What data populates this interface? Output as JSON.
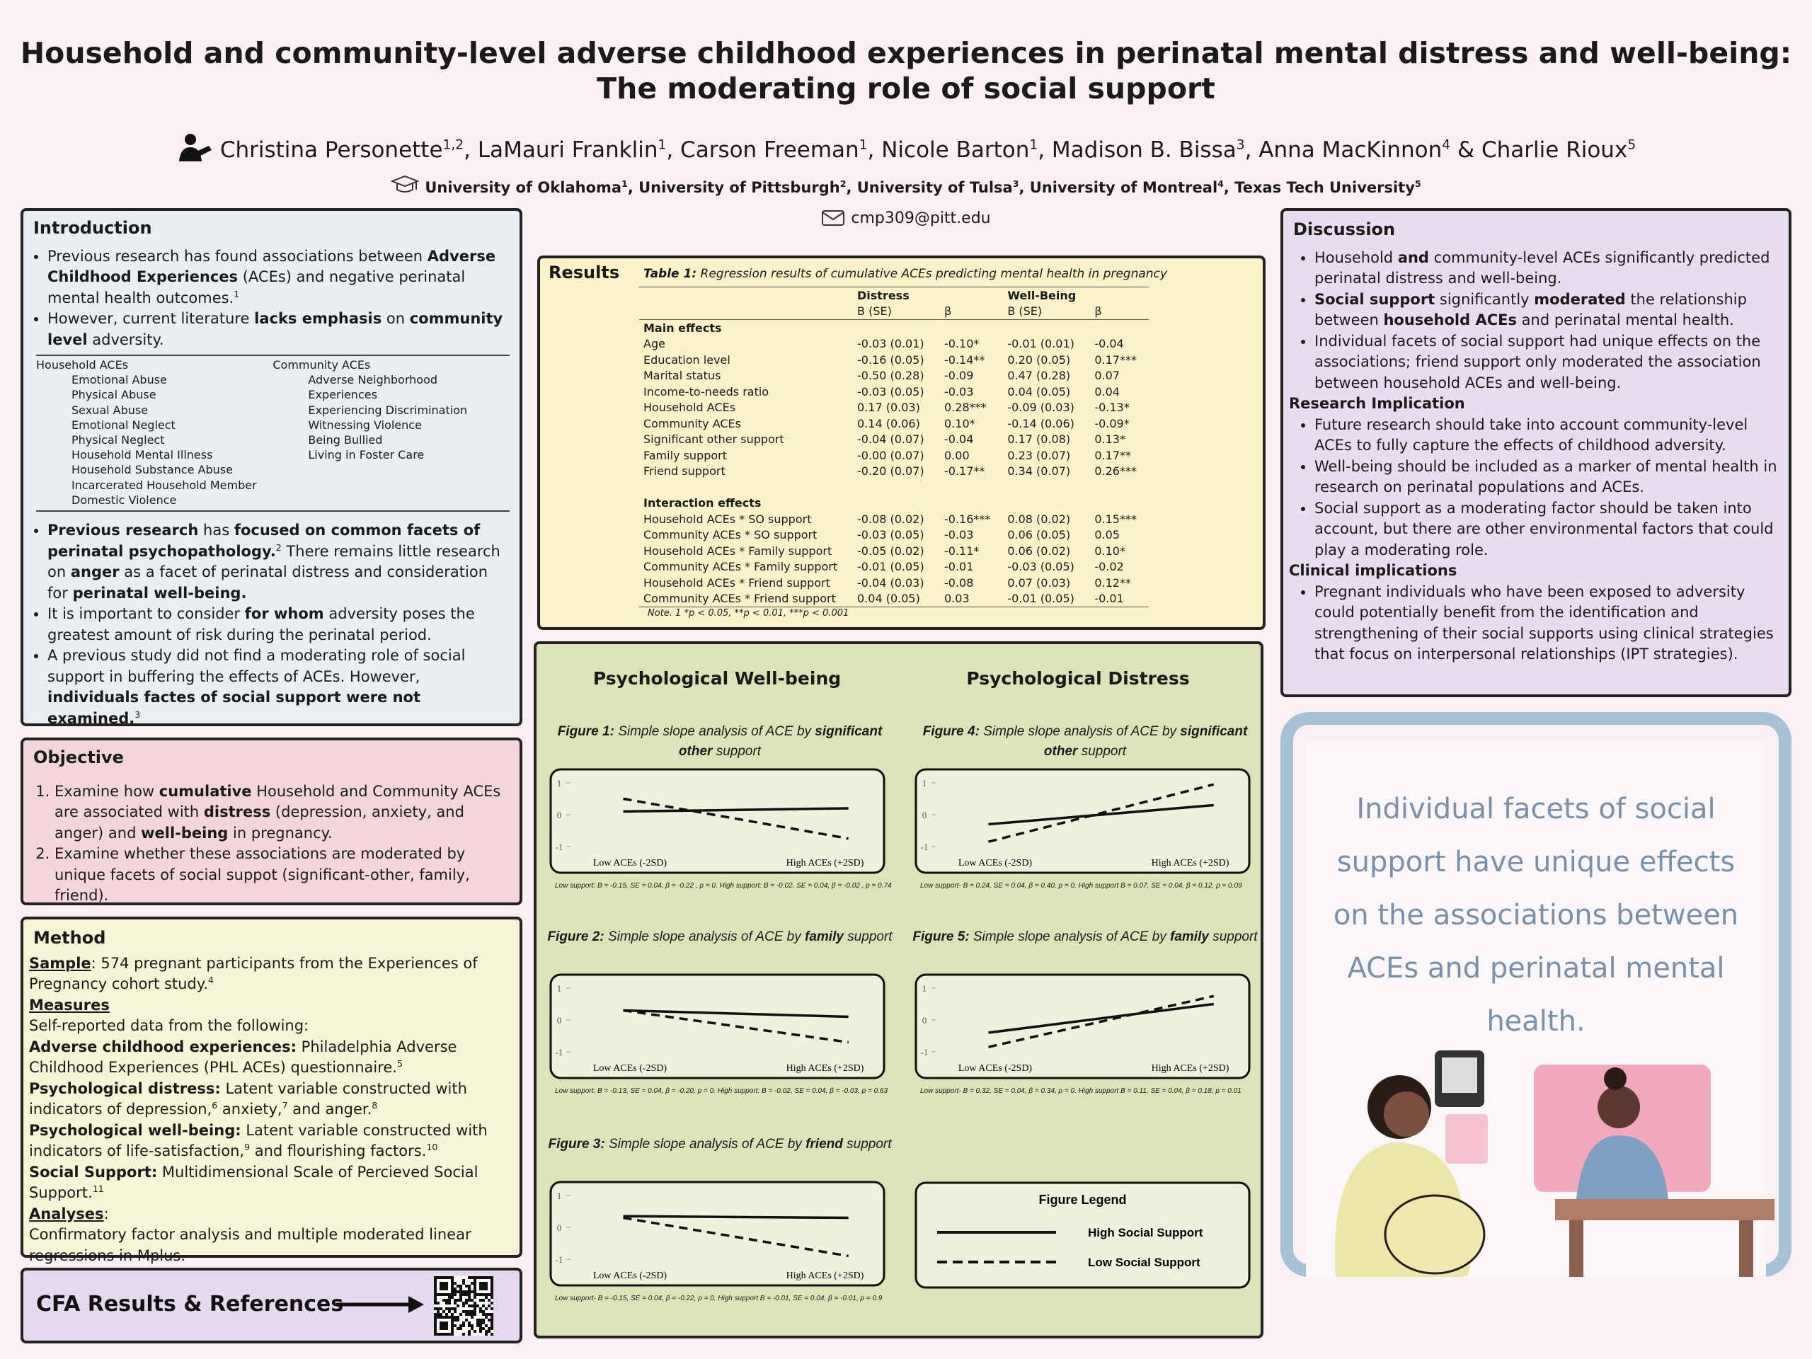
{
  "header": {
    "title": [
      "Household and community-level adverse childhood experiences in perinatal mental distress and well-being:",
      "The moderating role of social support"
    ],
    "authors": [
      "Christina Personette",
      {
        "sup": "1,2"
      },
      ", LaMauri Franklin",
      {
        "sup": "1"
      },
      ", Carson Freeman",
      {
        "sup": "1"
      },
      ", Nicole Barton",
      {
        "sup": "1"
      },
      ", Madison B. Bissa",
      {
        "sup": "3"
      },
      ", Anna MacKinnon",
      {
        "sup": "4"
      },
      " & Charlie Rioux",
      {
        "sup": "5"
      }
    ],
    "affiliations": [
      "University of Oklahoma",
      {
        "sup": "1"
      },
      ", University of Pittsburgh",
      {
        "sup": "2"
      },
      ", University of Tulsa",
      {
        "sup": "3"
      },
      ", University of Montreal",
      {
        "sup": "4"
      },
      ", Texas Tech University",
      {
        "sup": "5"
      }
    ],
    "email": "cmp309@pitt.edu"
  },
  "introduction": {
    "title": "Introduction",
    "bullets1": [
      [
        "Previous research has found associations between ",
        {
          "bold": "Adverse Childhood Experiences"
        },
        " (ACEs) and negative perinatal mental health outcomes.",
        {
          "sup": "1"
        }
      ],
      [
        "However, current literature ",
        {
          "bold": "lacks emphasis"
        },
        " on ",
        {
          "bold": "community level"
        },
        " adversity."
      ]
    ],
    "aces": [
      {
        "heading": "Household ACEs",
        "items": [
          "Emotional Abuse",
          "Physical Abuse",
          "Sexual Abuse",
          "Emotional Neglect",
          "Physical Neglect",
          "Household Mental Illness",
          "Household Substance Abuse",
          "Incarcerated Household Member",
          "Domestic Violence"
        ]
      },
      {
        "heading": "Community ACEs",
        "items": [
          "Adverse Neighborhood Experiences",
          "Experiencing Discrimination",
          "Witnessing Violence",
          "Being Bullied",
          "Living in Foster Care"
        ]
      }
    ],
    "bullets2": [
      [
        {
          "bold": "Previous research"
        },
        " has ",
        {
          "bold": "focused on common facets of perinatal psychopathology."
        },
        {
          "sup": "2"
        },
        " There remains little research on ",
        {
          "bold": "anger"
        },
        " as a facet of perinatal distress and consideration for ",
        {
          "bold": "perinatal well-being."
        }
      ],
      [
        "It is important to consider ",
        {
          "bold": "for whom"
        },
        " adversity poses the greatest amount of risk during the perinatal period."
      ],
      [
        " A previous study did not find a moderating role of social support in buffering the effects of ACEs. However, ",
        {
          "bold": "individuals factes of social support were not  examined."
        },
        {
          "sup": "3"
        }
      ]
    ]
  },
  "objective": {
    "title": "Objective",
    "items": [
      [
        "Examine how ",
        {
          "bold": "cumulative"
        },
        " Household and Community ACEs are associated with ",
        {
          "bold": "distress"
        },
        " (depression, anxiety, and anger) and ",
        {
          "bold": "well-being"
        },
        " in pregnancy."
      ],
      [
        "Examine whether these associations are moderated by unique facets of social suppot (significant-other, family, friend)."
      ]
    ]
  },
  "method": {
    "title": "Method",
    "lines": [
      [
        {
          "ub": "Sample"
        },
        ": 574 pregnant participants from the Experiences of Pregnancy cohort study.",
        {
          "sup": "4"
        }
      ],
      [
        {
          "ub": "Measures"
        }
      ],
      [
        "Self-reported data from the following:"
      ],
      [
        {
          "bold": "Adverse childhood experiences:"
        },
        " Philadelphia Adverse Childhood Experiences (PHL ACEs) questionnaire.",
        {
          "sup": "5"
        }
      ],
      [
        {
          "bold": "Psychological distress:"
        },
        " Latent variable constructed with indicators of depression,",
        {
          "sup": "6"
        },
        " anxiety,",
        {
          "sup": "7"
        },
        " and anger.",
        {
          "sup": "8"
        }
      ],
      [
        {
          "bold": "Psychological well-being:"
        },
        " Latent variable constructed with indicators of life-satisfaction,",
        {
          "sup": "9"
        },
        " and flourishing factors.",
        {
          "sup": "10"
        }
      ],
      [
        {
          "bold": "Social Support:"
        },
        " Multidimensional Scale of Percieved Social Support.",
        {
          "sup": "11"
        }
      ],
      [
        {
          "ub": "Analyses"
        },
        ":"
      ],
      [
        "Confirmatory factor analysis and multiple moderated linear regressions in Mplus."
      ]
    ]
  },
  "cfa": {
    "title": "CFA Results & References"
  },
  "results": {
    "title": "Results",
    "caption": [
      {
        "bold": "Table 1:"
      },
      " Regression results of cumulative ACEs predicting mental health in pregnancy"
    ],
    "groups": [
      "Distress",
      "Well-Being"
    ],
    "columns": [
      "B (SE)",
      "β",
      "B (SE)",
      "β"
    ],
    "sections": [
      {
        "title": "Main effects",
        "rows": [
          [
            "Age",
            "-0.03 (0.01)",
            "-0.10*",
            "-0.01 (0.01)",
            "-0.04"
          ],
          [
            "Education level",
            "-0.16 (0.05)",
            "-0.14**",
            "0.20 (0.05)",
            "0.17***"
          ],
          [
            "Marital status",
            "-0.50 (0.28)",
            "-0.09",
            "0.47 (0.28)",
            "0.07"
          ],
          [
            "Income-to-needs ratio",
            "-0.03 (0.05)",
            "-0.03",
            "0.04 (0.05)",
            "0.04"
          ],
          [
            "Household ACEs",
            "0.17 (0.03)",
            "0.28***",
            "-0.09 (0.03)",
            "-0.13*"
          ],
          [
            "Community ACEs",
            "0.14 (0.06)",
            "0.10*",
            "-0.14 (0.06)",
            "-0.09*"
          ],
          [
            "Significant other support",
            "-0.04 (0.07)",
            "-0.04",
            "0.17 (0.08)",
            "0.13*"
          ],
          [
            "Family support",
            "-0.00 (0.07)",
            "0.00",
            "0.23 (0.07)",
            "0.17**"
          ],
          [
            "Friend support",
            "-0.20 (0.07)",
            "-0.17**",
            "0.34 (0.07)",
            "0.26***"
          ]
        ]
      },
      {
        "title": "Interaction effects",
        "rows": [
          [
            "Household ACEs * SO support",
            "-0.08 (0.02)",
            "-0.16***",
            "0.08 (0.02)",
            "0.15***"
          ],
          [
            "Community ACEs * SO support",
            "-0.03 (0.05)",
            "-0.03",
            "0.06 (0.05)",
            "0.05"
          ],
          [
            "Household ACEs * Family support",
            "-0.05 (0.02)",
            "-0.11*",
            "0.06 (0.02)",
            "0.10*"
          ],
          [
            "Community ACEs * Family support",
            "-0.01 (0.05)",
            "-0.01",
            "-0.03 (0.05)",
            "-0.02"
          ],
          [
            "Household ACEs * Friend support",
            "-0.04 (0.03)",
            "-0.08",
            "0.07 (0.03)",
            "0.12**"
          ],
          [
            "Community ACEs * Friend support",
            "0.04 (0.05)",
            "0.03",
            "-0.01 (0.05)",
            "-0.01"
          ]
        ]
      }
    ],
    "note": "Note. 1 *p < 0.05, **p < 0.01, ***p < 0.001"
  },
  "figures": {
    "headings": [
      "Psychological Well-being",
      "Psychological Distress"
    ],
    "legend": {
      "title": "Figure Legend",
      "items": [
        "High Social Support",
        "Low Social Support"
      ]
    }
  },
  "chart_data": [
    {
      "type": "line",
      "title": [
        {
          "bold": "Figure 1:"
        },
        " Simple slope analysis of ACE by ",
        {
          "bold": "significant other"
        },
        " support"
      ],
      "categories": [
        "Low ACEs (-2SD)",
        "High ACEs (+2SD)"
      ],
      "series": [
        {
          "style": "solid",
          "color": "#111111",
          "values": [
            0.1,
            0.2
          ]
        },
        {
          "style": "dashed",
          "color": "#111111",
          "values": [
            0.5,
            -0.75
          ]
        }
      ],
      "ylim": [
        -1.2,
        1.2
      ],
      "yticks": [
        1,
        0,
        -1
      ],
      "note": "Low support: B = -0.15, SE = 0.04, β = -0.22 , p = 0. High support: B = -0.02, SE = 0.04, β = -0.02 , p = 0.74"
    },
    {
      "type": "line",
      "title": [
        {
          "bold": "Figure 2:"
        },
        " Simple slope analysis of ACE by ",
        {
          "bold": "family"
        },
        " support"
      ],
      "categories": [
        "Low ACEs  (-2SD)",
        "High ACEs (+2SD)"
      ],
      "series": [
        {
          "style": "solid",
          "color": "#111111",
          "values": [
            0.3,
            0.1
          ]
        },
        {
          "style": "dashed",
          "color": "#111111",
          "values": [
            0.3,
            -0.7
          ]
        }
      ],
      "ylim": [
        -1.2,
        1.2
      ],
      "yticks": [
        1,
        0,
        -1
      ],
      "note": "Low support: B = -0.13, SE = 0.04, β = -0.20, p = 0. High support: B = -0.02, SE = 0.04, β = -0.03, p = 0.63"
    },
    {
      "type": "line",
      "title": [
        {
          "bold": "Figure 3:"
        },
        " Simple slope analysis of ACE by ",
        {
          "bold": "friend"
        },
        " support"
      ],
      "categories": [
        "Low ACEs  (-2SD)",
        "High ACEs  (+2SD)"
      ],
      "series": [
        {
          "style": "solid",
          "color": "#111111",
          "values": [
            0.35,
            0.3
          ]
        },
        {
          "style": "dashed",
          "color": "#111111",
          "values": [
            0.3,
            -0.9
          ]
        }
      ],
      "ylim": [
        -1.2,
        1.2
      ],
      "yticks": [
        1,
        0,
        -1
      ],
      "note": "Low support- B = -0.15, SE = 0.04, β = -0.22, p = 0. High support B = -0.01, SE = 0.04, β = -0.01, p = 0.9"
    },
    {
      "type": "line",
      "title": [
        {
          "bold": "Figure 4:"
        },
        " Simple slope analysis of ACE by ",
        {
          "bold": "significant other"
        },
        " support"
      ],
      "categories": [
        "Low ACEs (-2SD)",
        "High ACEs (+2SD)"
      ],
      "series": [
        {
          "style": "solid",
          "color": "#111111",
          "values": [
            -0.3,
            0.3
          ]
        },
        {
          "style": "dashed",
          "color": "#111111",
          "values": [
            -0.85,
            0.95
          ]
        }
      ],
      "ylim": [
        -1.2,
        1.2
      ],
      "yticks": [
        1,
        0,
        -1
      ],
      "note": "Low support- B = 0.24, SE = 0.04, β = 0.40, p = 0. High support B = 0.07, SE = 0.04, β = 0.12, p = 0.09"
    },
    {
      "type": "line",
      "title": [
        {
          "bold": "Figure 5:"
        },
        " Simple slope analysis of ACE by ",
        {
          "bold": "family"
        },
        " support"
      ],
      "categories": [
        "Low ACEs (-2SD)",
        "High  ACEs (+2SD)"
      ],
      "series": [
        {
          "style": "solid",
          "color": "#111111",
          "values": [
            -0.4,
            0.5
          ]
        },
        {
          "style": "dashed",
          "color": "#111111",
          "values": [
            -0.85,
            0.75
          ]
        }
      ],
      "ylim": [
        -1.2,
        1.2
      ],
      "yticks": [
        1,
        0,
        -1
      ],
      "note": "Low support- B = 0.32, SE = 0.04, β = 0.34, p = 0. High support B = 0.11, SE = 0.04, β = 0.18, p = 0.01"
    }
  ],
  "discussion": {
    "title": "Discussion",
    "bullets1": [
      [
        " Household ",
        {
          "bold": "and"
        },
        " community-level ACEs significantly predicted perinatal distress and well-being."
      ],
      [
        {
          "bold": "Social support"
        },
        " significantly ",
        {
          "bold": "moderated"
        },
        " the relationship between ",
        {
          "bold": "household ACEs"
        },
        " and perinatal mental health."
      ],
      [
        "Individual facets of social support had unique effects on the associations; friend support only moderated the association between household ACEs and well-being."
      ]
    ],
    "sections": [
      {
        "heading": "Research Implication",
        "bullets": [
          [
            "Future research should take into account community-level ACEs to fully capture the effects of childhood adversity."
          ],
          [
            "Well-being should be included as a marker of mental health in research on perinatal populations and ACEs."
          ],
          [
            "Social support as a moderating factor should be taken into account, but there are other environmental factors that could play a moderating role."
          ]
        ]
      },
      {
        "heading": "Clinical implications",
        "bullets": [
          [
            "Pregnant individuals who have been exposed to adversity could potentially benefit from the identification and strengthening of their social supports using clinical strategies that focus on interpersonal relationships (IPT strategies)."
          ]
        ]
      }
    ]
  },
  "quote": "Individual facets of social support have unique effects on the associations between ACEs and perinatal mental health."
}
